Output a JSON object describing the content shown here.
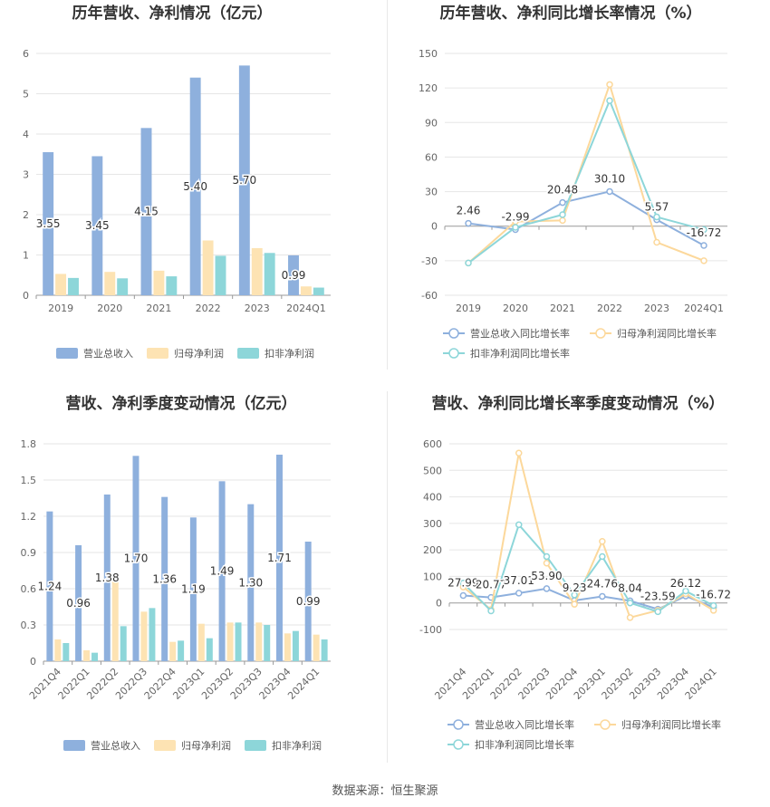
{
  "colors": {
    "revenue": "#8eb0dd",
    "net_profit": "#fde3b3",
    "deducted_profit": "#8dd6d9",
    "revenue_line": "#8eb0dd",
    "net_line": "#fcd89b",
    "deducted_line": "#8dd6d9",
    "grid": "#e6e6e6",
    "axis": "#999999",
    "text": "#666666"
  },
  "footer": {
    "source": "数据来源：恒生聚源"
  },
  "chart_data": [
    {
      "id": "annual-bar",
      "type": "bar",
      "title": "历年营收、净利情况（亿元）",
      "categories": [
        "2019",
        "2020",
        "2021",
        "2022",
        "2023",
        "2024Q1"
      ],
      "series": [
        {
          "name": "营业总收入",
          "values": [
            3.55,
            3.45,
            4.15,
            5.4,
            5.7,
            0.99
          ],
          "labels": [
            "3.55",
            "3.45",
            "4.15",
            "5.40",
            "5.70",
            "0.99"
          ]
        },
        {
          "name": "归母净利润",
          "values": [
            0.53,
            0.58,
            0.61,
            1.36,
            1.17,
            0.22
          ]
        },
        {
          "name": "扣非净利润",
          "values": [
            0.43,
            0.42,
            0.47,
            0.98,
            1.05,
            0.19
          ]
        }
      ],
      "yticks": [
        "0",
        "1",
        "2",
        "3",
        "4",
        "5",
        "6"
      ],
      "ylim": [
        0,
        6
      ]
    },
    {
      "id": "annual-line",
      "type": "line",
      "title": "历年营收、净利同比增长率情况（%）",
      "categories": [
        "2019",
        "2020",
        "2021",
        "2022",
        "2023",
        "2024Q1"
      ],
      "series": [
        {
          "name": "营业总收入同比增长率",
          "values": [
            2.46,
            -2.99,
            20.48,
            30.1,
            5.57,
            -16.72
          ],
          "labels": [
            "2.46",
            "-2.99",
            "20.48",
            "30.10",
            "5.57",
            "-16.72"
          ]
        },
        {
          "name": "归母净利润同比增长率",
          "values": [
            -32,
            4,
            5,
            123,
            -14,
            -30
          ]
        },
        {
          "name": "扣非净利润同比增长率",
          "values": [
            -32,
            -1,
            10,
            109,
            8,
            -3
          ]
        }
      ],
      "yticks": [
        "-60",
        "-30",
        "0",
        "30",
        "60",
        "90",
        "120",
        "150"
      ],
      "ylim": [
        -60,
        150
      ]
    },
    {
      "id": "quarter-bar",
      "type": "bar",
      "title": "营收、净利季度变动情况（亿元）",
      "categories": [
        "2021Q4",
        "2022Q1",
        "2022Q2",
        "2022Q3",
        "2022Q4",
        "2023Q1",
        "2023Q2",
        "2023Q3",
        "2023Q4",
        "2024Q1"
      ],
      "series": [
        {
          "name": "营业总收入",
          "values": [
            1.24,
            0.96,
            1.38,
            1.7,
            1.36,
            1.19,
            1.49,
            1.3,
            1.71,
            0.99
          ],
          "labels": [
            "1.24",
            "0.96",
            "1.38",
            "1.70",
            "1.36",
            "1.19",
            "1.49",
            "1.30",
            "1.71",
            "0.99"
          ]
        },
        {
          "name": "归母净利润",
          "values": [
            0.18,
            0.09,
            0.66,
            0.41,
            0.16,
            0.31,
            0.32,
            0.32,
            0.23,
            0.22
          ]
        },
        {
          "name": "扣非净利润",
          "values": [
            0.15,
            0.07,
            0.29,
            0.44,
            0.17,
            0.19,
            0.32,
            0.3,
            0.25,
            0.18
          ]
        }
      ],
      "yticks": [
        "0",
        "0.3",
        "0.6",
        "0.9",
        "1.2",
        "1.5",
        "1.8"
      ],
      "ylim": [
        0,
        1.8
      ]
    },
    {
      "id": "quarter-line",
      "type": "line",
      "title": "营收、净利同比增长率季度变动情况（%）",
      "categories": [
        "2021Q4",
        "2022Q1",
        "2022Q2",
        "2022Q3",
        "2022Q4",
        "2023Q1",
        "2023Q2",
        "2023Q3",
        "2023Q4",
        "2024Q1"
      ],
      "series": [
        {
          "name": "营业总收入同比增长率",
          "values": [
            27.99,
            20.77,
            37.01,
            53.9,
            9.23,
            24.76,
            8.04,
            -23.59,
            26.12,
            -16.72
          ],
          "labels": [
            "27.99",
            "20.77",
            "37.01",
            "53.90",
            "9.23",
            "24.76",
            "8.04",
            "-23.59",
            "26.12",
            "-16.72"
          ]
        },
        {
          "name": "归母净利润同比增长率",
          "values": [
            60,
            -25,
            565,
            150,
            -5,
            232,
            -55,
            -28,
            35,
            -28
          ]
        },
        {
          "name": "扣非净利润同比增长率",
          "values": [
            75,
            -30,
            295,
            175,
            30,
            175,
            0,
            -33,
            45,
            -10
          ]
        }
      ],
      "yticks": [
        "-100",
        "0",
        "100",
        "200",
        "300",
        "400",
        "500",
        "600"
      ],
      "ylim": [
        -100,
        600
      ]
    }
  ]
}
